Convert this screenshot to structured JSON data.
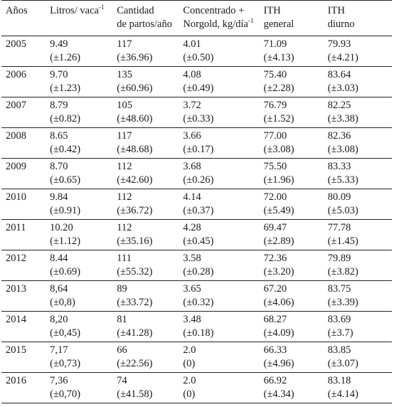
{
  "table": {
    "headers": [
      {
        "lines": [
          "Años"
        ]
      },
      {
        "lines": [
          "Litros/ vaca"
        ],
        "sup": "-1"
      },
      {
        "lines": [
          "Cantidad",
          "de partos/año"
        ]
      },
      {
        "lines": [
          "Concentrado +",
          "Norgold, kg/día"
        ],
        "sup": "-1"
      },
      {
        "lines": [
          "ITH",
          "general"
        ]
      },
      {
        "lines": [
          "ITH",
          "diurno"
        ]
      }
    ],
    "rows": [
      {
        "year": "2005",
        "litros": [
          "9.49",
          "(±1.26)"
        ],
        "partos": [
          "117",
          "(±36.96)"
        ],
        "concentrado": [
          "4.01",
          "(±0.50)"
        ],
        "ith_general": [
          "71.09",
          "(±4.13)"
        ],
        "ith_diurno": [
          "79.93",
          "(±4.21)"
        ]
      },
      {
        "year": "2006",
        "litros": [
          "9.70",
          "(±1.23)"
        ],
        "partos": [
          "135",
          "(±60.96)"
        ],
        "concentrado": [
          "4.08",
          "(±0.49)"
        ],
        "ith_general": [
          "75.40",
          "(±2.28)"
        ],
        "ith_diurno": [
          "83.64",
          "(±3.03)"
        ]
      },
      {
        "year": "2007",
        "litros": [
          "8.79",
          "(±0.82)"
        ],
        "partos": [
          "105",
          "(±48.60)"
        ],
        "concentrado": [
          "3.72",
          "(±0.33)"
        ],
        "ith_general": [
          "76.79",
          "(±1.52)"
        ],
        "ith_diurno": [
          "82.25",
          "(±3.38)"
        ]
      },
      {
        "year": "2008",
        "litros": [
          "8.65",
          "(±0.42)"
        ],
        "partos": [
          "117",
          "(±48.68)"
        ],
        "concentrado": [
          "3.66",
          "(±0.17)"
        ],
        "ith_general": [
          "77.00",
          "(±3.08)"
        ],
        "ith_diurno": [
          "82.36",
          "(±3.08)"
        ]
      },
      {
        "year": "2009",
        "litros": [
          "8.70",
          "(±0.65)"
        ],
        "partos": [
          "112",
          "(±42.60)"
        ],
        "concentrado": [
          "3.68",
          "(±0.26)"
        ],
        "ith_general": [
          "75.50",
          "(±1.96)"
        ],
        "ith_diurno": [
          "83.33",
          "(±5.33)"
        ]
      },
      {
        "year": "2010",
        "litros": [
          "9.84",
          "(±0.91)"
        ],
        "partos": [
          "112",
          "(±36.72)"
        ],
        "concentrado": [
          "4.14",
          "(±0.37)"
        ],
        "ith_general": [
          "72.00",
          "(±5.49)"
        ],
        "ith_diurno": [
          "80.09",
          "(±5.03)"
        ]
      },
      {
        "year": "2011",
        "litros": [
          "10.20",
          "(±1.12)"
        ],
        "partos": [
          "112",
          "(±35.16)"
        ],
        "concentrado": [
          "4.28",
          "(±0.45)"
        ],
        "ith_general": [
          "69.47",
          "(±2.89)"
        ],
        "ith_diurno": [
          "77.78",
          "(±1.45)"
        ]
      },
      {
        "year": "2012",
        "litros": [
          "8.44",
          "(±0.69)"
        ],
        "partos": [
          "111",
          "(±55.32)"
        ],
        "concentrado": [
          "3.58",
          "(±0.28)"
        ],
        "ith_general": [
          "72.36",
          "(±3.20)"
        ],
        "ith_diurno": [
          "79.89",
          "(±3.82)"
        ]
      },
      {
        "year": "2013",
        "litros": [
          "8,64",
          "(±0,8)"
        ],
        "partos": [
          "89",
          "(±33.72)"
        ],
        "concentrado": [
          "3.65",
          "(±0.32)"
        ],
        "ith_general": [
          "67.20",
          "(±4.06)"
        ],
        "ith_diurno": [
          "83.75",
          "(±3.39)"
        ]
      },
      {
        "year": "2014",
        "litros": [
          "8,20",
          "(±0,45)"
        ],
        "partos": [
          "81",
          "(±41.28)"
        ],
        "concentrado": [
          "3.48",
          "(±0.18)"
        ],
        "ith_general": [
          "68.27",
          "(±4.09)"
        ],
        "ith_diurno": [
          "83.69",
          "(±3.7)"
        ]
      },
      {
        "year": "2015",
        "litros": [
          "7,17",
          "(±0,73)"
        ],
        "partos": [
          "66",
          "(±22.56)"
        ],
        "concentrado": [
          "2.0",
          "(0)"
        ],
        "ith_general": [
          "66.33",
          "(±4.96)"
        ],
        "ith_diurno": [
          "83.85",
          "(±3.07)"
        ]
      },
      {
        "year": "2016",
        "litros": [
          "7,36",
          "(±0,70)"
        ],
        "partos": [
          "74",
          "(±41.58)"
        ],
        "concentrado": [
          "2.0",
          "(0)"
        ],
        "ith_general": [
          "66.92",
          "(±4.34)"
        ],
        "ith_diurno": [
          "83.18",
          "(±4.14)"
        ]
      }
    ]
  }
}
